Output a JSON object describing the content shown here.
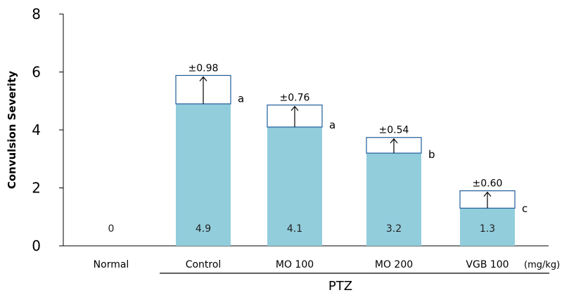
{
  "chart_data": {
    "type": "bar",
    "title": "",
    "ylabel": "Convulsion Severity",
    "xlabel": "",
    "ylim": [
      0,
      8
    ],
    "yticks": [
      0,
      2,
      4,
      6,
      8
    ],
    "categories": [
      "Normal",
      "Control",
      "MO 100",
      "MO 200",
      "VGB 100"
    ],
    "values": [
      0,
      4.9,
      4.1,
      3.2,
      1.3
    ],
    "value_labels": [
      "0",
      "4.9",
      "4.1",
      "3.2",
      "1.3"
    ],
    "errors": [
      null,
      0.98,
      0.76,
      0.54,
      0.6
    ],
    "error_labels": [
      "",
      "±0.98",
      "±0.76",
      "±0.54",
      "±0.60"
    ],
    "significance": [
      "",
      "a",
      "a",
      "b",
      "c"
    ],
    "group_label": "PTZ",
    "unit_label": "(mg/kg)",
    "bar_color": "#92CDDC",
    "error_box_edge": "#1F5C9B",
    "grid": false,
    "legend": "none"
  }
}
